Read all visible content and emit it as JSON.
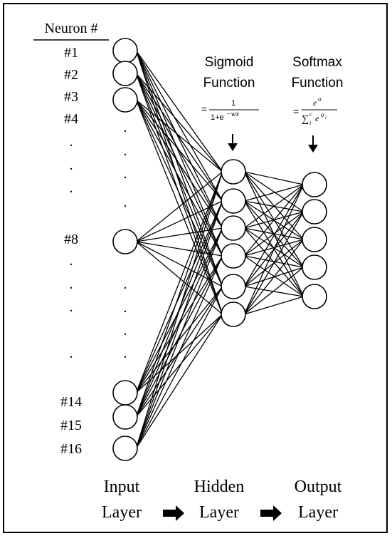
{
  "header": {
    "neuron_column": "Neuron #"
  },
  "input_labels": [
    "#1",
    "#2",
    "#3",
    "#4",
    "#8",
    "#14",
    "#15",
    "#16"
  ],
  "ellipsis_dot": ".",
  "sigmoid": {
    "title_line1": "Sigmoid",
    "title_line2": "Function",
    "eq": "=",
    "numerator": "1",
    "denominator": "1+e",
    "denominator_exp": "−wx"
  },
  "softmax": {
    "title_line1": "Softmax",
    "title_line2": "Function",
    "eq": "=",
    "numerator": "e",
    "numerator_exp": "o",
    "sum": "∑",
    "sum_sub": "i",
    "sum_sup": "c",
    "den_base": "e",
    "den_exp": "o",
    "den_exp_sub": "i"
  },
  "layers": {
    "input": {
      "line1": "Input",
      "line2": "Layer"
    },
    "hidden": {
      "line1": "Hidden",
      "line2": "Layer"
    },
    "output": {
      "line1": "Output",
      "line2": "Layer"
    }
  }
}
